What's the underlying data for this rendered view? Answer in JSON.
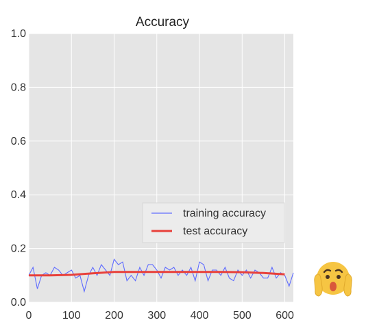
{
  "chart_data": {
    "type": "line",
    "title": "Accuracy",
    "xlabel": "",
    "ylabel": "",
    "xlim": [
      0,
      620
    ],
    "ylim": [
      0.0,
      1.0
    ],
    "x_ticks": [
      "0",
      "100",
      "200",
      "300",
      "400",
      "500",
      "600"
    ],
    "y_ticks": [
      "0.0",
      "0.2",
      "0.4",
      "0.6",
      "0.8",
      "1.0"
    ],
    "grid": true,
    "legend_position": "lower-right",
    "series": [
      {
        "name": "training accuracy",
        "color": "#5f6cff",
        "x": [
          0,
          10,
          20,
          30,
          40,
          50,
          60,
          70,
          80,
          90,
          100,
          110,
          120,
          130,
          140,
          150,
          160,
          170,
          180,
          190,
          200,
          210,
          220,
          230,
          240,
          250,
          260,
          270,
          280,
          290,
          300,
          310,
          320,
          330,
          340,
          350,
          360,
          370,
          380,
          390,
          400,
          410,
          420,
          430,
          440,
          450,
          460,
          470,
          480,
          490,
          500,
          510,
          520,
          530,
          540,
          550,
          560,
          570,
          580,
          590,
          600,
          610,
          620
        ],
        "y": [
          0.1,
          0.13,
          0.05,
          0.1,
          0.11,
          0.1,
          0.13,
          0.12,
          0.1,
          0.11,
          0.12,
          0.09,
          0.1,
          0.04,
          0.1,
          0.13,
          0.1,
          0.14,
          0.12,
          0.1,
          0.16,
          0.14,
          0.15,
          0.08,
          0.1,
          0.08,
          0.13,
          0.1,
          0.14,
          0.14,
          0.12,
          0.09,
          0.13,
          0.12,
          0.13,
          0.1,
          0.12,
          0.1,
          0.13,
          0.08,
          0.15,
          0.14,
          0.08,
          0.12,
          0.12,
          0.1,
          0.13,
          0.09,
          0.08,
          0.12,
          0.1,
          0.12,
          0.09,
          0.12,
          0.11,
          0.09,
          0.09,
          0.13,
          0.09,
          0.11,
          0.1,
          0.06,
          0.11
        ]
      },
      {
        "name": "test accuracy",
        "color": "#e8403a",
        "x": [
          0,
          50,
          100,
          150,
          200,
          250,
          300,
          350,
          400,
          450,
          500,
          550,
          600
        ],
        "y": [
          0.1,
          0.1,
          0.102,
          0.108,
          0.113,
          0.113,
          0.113,
          0.113,
          0.113,
          0.113,
          0.112,
          0.109,
          0.104
        ]
      }
    ]
  },
  "emoji": {
    "name": "face-screaming-in-fear-emoji",
    "colors": {
      "face": "#f6c543",
      "mouth": "#d9583b",
      "feature": "#4a3320"
    }
  }
}
